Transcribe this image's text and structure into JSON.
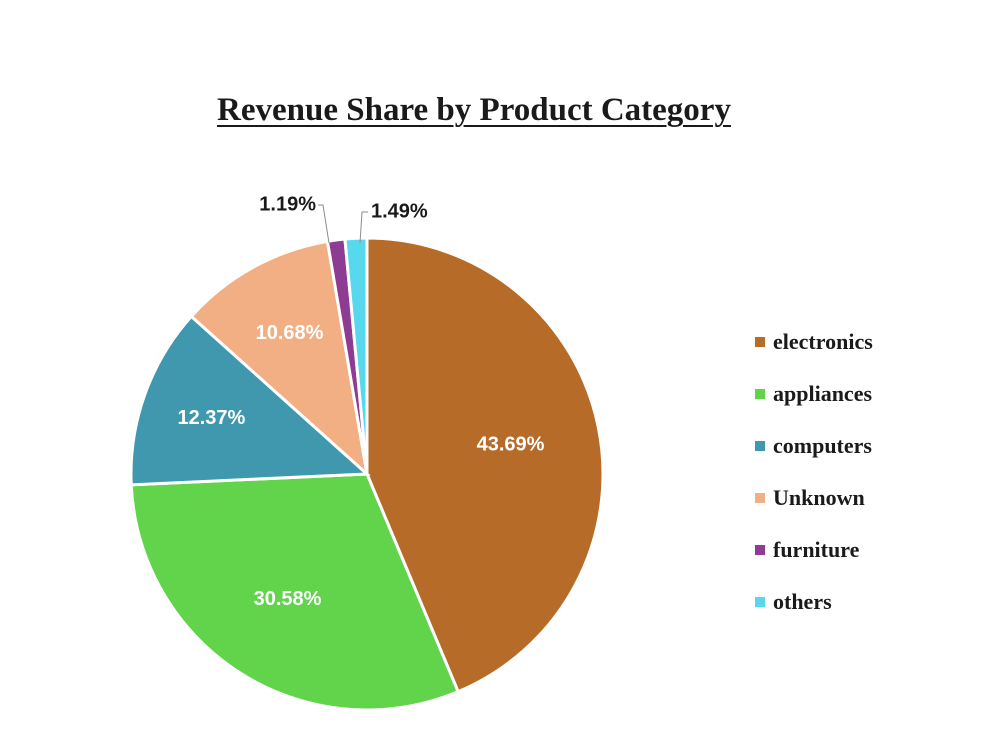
{
  "chart_data": {
    "type": "pie",
    "title": "Revenue Share by Product Category",
    "legend_position": "right",
    "slices": [
      {
        "label": "electronics",
        "value": 43.69,
        "value_label": "43.69%",
        "color": "#b76b28",
        "label_color": "#ffffff"
      },
      {
        "label": "appliances",
        "value": 30.58,
        "value_label": "30.58%",
        "color": "#61d44c",
        "label_color": "#ffffff"
      },
      {
        "label": "computers",
        "value": 12.37,
        "value_label": "12.37%",
        "color": "#4098ae",
        "label_color": "#ffffff"
      },
      {
        "label": "Unknown",
        "value": 10.68,
        "value_label": "10.68%",
        "color": "#f1af83",
        "label_color": "#ffffff"
      },
      {
        "label": "furniture",
        "value": 1.19,
        "value_label": "1.19%",
        "color": "#8e3b93",
        "label_color": "#1a1a1a"
      },
      {
        "label": "others",
        "value": 1.49,
        "value_label": "1.49%",
        "color": "#57d8ec",
        "label_color": "#1a1a1a"
      }
    ]
  }
}
